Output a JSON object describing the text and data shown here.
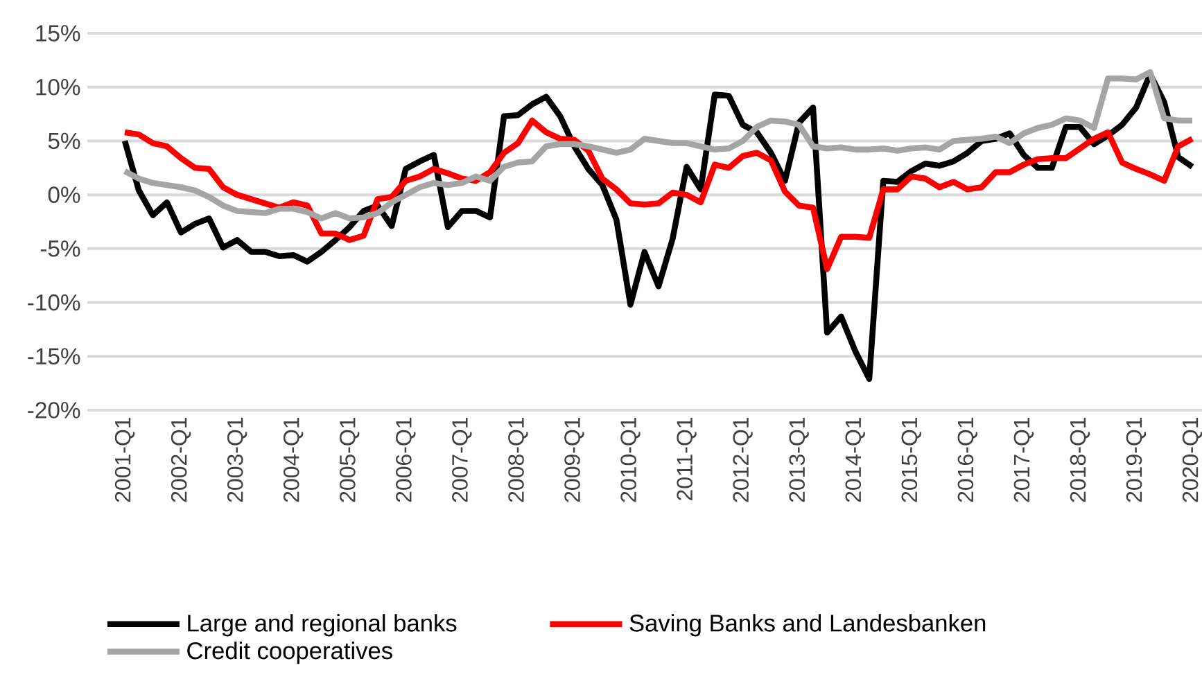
{
  "chart_data": {
    "type": "line",
    "categories": [
      "2001-Q1",
      null,
      null,
      null,
      "2002-Q1",
      null,
      null,
      null,
      "2003-Q1",
      null,
      null,
      null,
      "2004-Q1",
      null,
      null,
      null,
      "2005-Q1",
      null,
      null,
      null,
      "2006-Q1",
      null,
      null,
      null,
      "2007-Q1",
      null,
      null,
      null,
      "2008-Q1",
      null,
      null,
      null,
      "2009-Q1",
      null,
      null,
      null,
      "2010-Q1",
      null,
      null,
      null,
      "2011-Q1",
      null,
      null,
      null,
      "2012-Q1",
      null,
      null,
      null,
      "2013-Q1",
      null,
      null,
      null,
      "2014-Q1",
      null,
      null,
      null,
      "2015-Q1",
      null,
      null,
      null,
      "2016-Q1",
      null,
      null,
      null,
      "2017-Q1",
      null,
      null,
      null,
      "2018-Q1",
      null,
      null,
      null,
      "2019-Q1",
      null,
      null,
      null,
      "2020-Q1"
    ],
    "series": [
      {
        "name": "Large and regional banks",
        "color": "#000000",
        "values": [
          5.0,
          0.4,
          -1.9,
          -0.7,
          -3.5,
          -2.7,
          -2.2,
          -4.9,
          -4.2,
          -5.3,
          -5.3,
          -5.7,
          -5.6,
          -6.2,
          -5.3,
          -4.2,
          -3.0,
          -1.5,
          -1.0,
          -2.9,
          2.4,
          3.1,
          3.7,
          -3.0,
          -1.5,
          -1.5,
          -2.1,
          7.3,
          7.4,
          8.4,
          9.1,
          7.3,
          4.5,
          2.4,
          0.9,
          -2.3,
          -10.2,
          -5.3,
          -8.5,
          -4.1,
          2.6,
          0.5,
          9.3,
          9.2,
          6.5,
          5.8,
          3.9,
          1.3,
          6.7,
          8.1,
          -12.8,
          -11.3,
          -14.5,
          -17.1,
          1.3,
          1.2,
          2.2,
          2.9,
          2.7,
          3.1,
          3.9,
          5.0,
          5.2,
          5.7,
          3.7,
          2.5,
          2.5,
          6.3,
          6.3,
          4.7,
          5.5,
          6.5,
          8.1,
          11.2,
          8.6,
          3.5,
          2.6
        ]
      },
      {
        "name": "Saving Banks and Landesbanken",
        "color": "#ff0000",
        "values": [
          5.8,
          5.6,
          4.8,
          4.5,
          3.4,
          2.5,
          2.4,
          0.7,
          0.0,
          -0.4,
          -0.8,
          -1.2,
          -0.7,
          -1.0,
          -3.6,
          -3.6,
          -4.2,
          -3.8,
          -0.4,
          -0.2,
          1.3,
          1.7,
          2.4,
          2.0,
          1.5,
          1.3,
          2.1,
          3.9,
          4.8,
          6.9,
          5.8,
          5.2,
          5.1,
          4.1,
          1.5,
          0.5,
          -0.8,
          -0.9,
          -0.8,
          0.2,
          0.0,
          -0.7,
          2.8,
          2.5,
          3.6,
          3.9,
          3.2,
          0.3,
          -1.0,
          -1.2,
          -6.9,
          -3.9,
          -3.9,
          -4.0,
          0.5,
          0.5,
          1.7,
          1.5,
          0.7,
          1.2,
          0.5,
          0.7,
          2.1,
          2.1,
          2.8,
          3.3,
          3.4,
          3.4,
          4.3,
          5.2,
          5.8,
          3.0,
          2.4,
          1.9,
          1.3,
          4.5,
          5.2
        ]
      },
      {
        "name": "Credit cooperatives",
        "color": "#a5a5a5",
        "values": [
          2.2,
          1.5,
          1.1,
          0.9,
          0.7,
          0.4,
          -0.2,
          -1.0,
          -1.5,
          -1.6,
          -1.7,
          -1.3,
          -1.3,
          -1.6,
          -2.2,
          -1.7,
          -2.2,
          -2.1,
          -1.7,
          -0.7,
          0.0,
          0.7,
          1.1,
          0.9,
          1.1,
          1.7,
          1.3,
          2.6,
          3.0,
          3.1,
          4.5,
          4.7,
          4.7,
          4.5,
          4.2,
          3.9,
          4.2,
          5.2,
          5.0,
          4.8,
          4.8,
          4.5,
          4.2,
          4.3,
          5.0,
          6.3,
          6.9,
          6.8,
          6.5,
          4.5,
          4.3,
          4.4,
          4.2,
          4.2,
          4.3,
          4.1,
          4.3,
          4.4,
          4.2,
          5.0,
          5.1,
          5.2,
          5.4,
          4.8,
          5.7,
          6.2,
          6.5,
          7.1,
          6.9,
          6.2,
          10.8,
          10.8,
          10.7,
          11.4,
          7.1,
          6.9,
          6.9
        ]
      }
    ],
    "ylim": [
      -20,
      15
    ],
    "yticks": [
      {
        "value": -20,
        "label": "-20%"
      },
      {
        "value": -15,
        "label": "-15%"
      },
      {
        "value": -10,
        "label": "-10%"
      },
      {
        "value": -5,
        "label": "-5%"
      },
      {
        "value": 0,
        "label": "0%"
      },
      {
        "value": 5,
        "label": "5%"
      },
      {
        "value": 10,
        "label": "10%"
      },
      {
        "value": 15,
        "label": "15%"
      }
    ],
    "grid": "y",
    "legend": "bottom",
    "marker": "none",
    "line_style": "solid"
  }
}
